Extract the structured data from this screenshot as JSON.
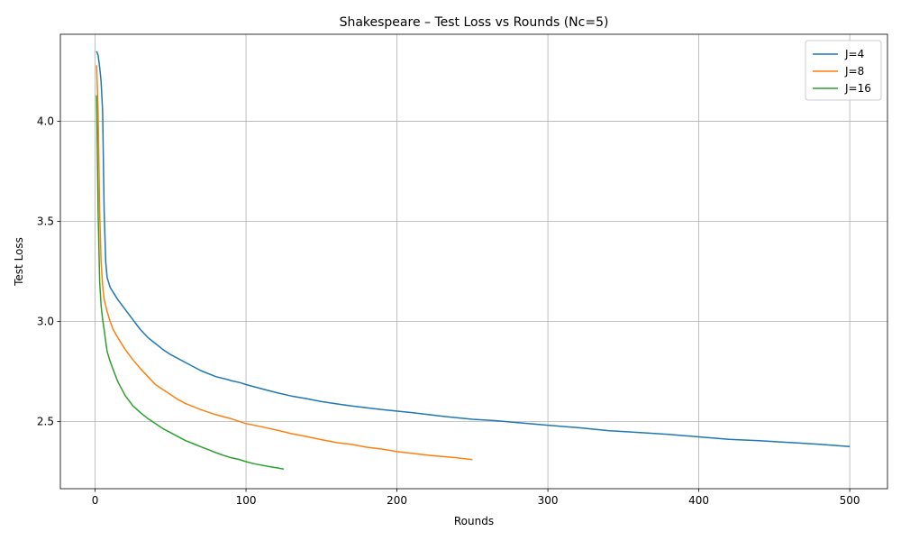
{
  "chart_data": {
    "type": "line",
    "title": "Shakespeare – Test Loss vs Rounds (Nc=5)",
    "xlabel": "Rounds",
    "ylabel": "Test Loss",
    "xlim": [
      -23,
      525
    ],
    "ylim": [
      2.165,
      4.435
    ],
    "xticks": [
      0,
      100,
      200,
      300,
      400,
      500
    ],
    "xtick_labels": [
      "0",
      "100",
      "200",
      "300",
      "400",
      "500"
    ],
    "yticks": [
      2.5,
      3.0,
      3.5,
      4.0
    ],
    "ytick_labels": [
      "2.5",
      "3.0",
      "3.5",
      "4.0"
    ],
    "grid": true,
    "legend": "top-right",
    "series": [
      {
        "name": "J=4",
        "color": "#1f77b4",
        "x": [
          1,
          2,
          3,
          4,
          5,
          6,
          7,
          8,
          10,
          15,
          20,
          25,
          30,
          35,
          40,
          45,
          50,
          60,
          70,
          80,
          88,
          90,
          96,
          100,
          110,
          120,
          130,
          140,
          150,
          170,
          190,
          210,
          230,
          250,
          265,
          280,
          300,
          320,
          340,
          360,
          380,
          400,
          420,
          440,
          460,
          480,
          500
        ],
        "y": [
          4.35,
          4.33,
          4.27,
          4.2,
          4.05,
          3.55,
          3.3,
          3.22,
          3.17,
          3.11,
          3.06,
          3.01,
          2.96,
          2.92,
          2.89,
          2.86,
          2.835,
          2.795,
          2.755,
          2.725,
          2.71,
          2.705,
          2.695,
          2.685,
          2.665,
          2.645,
          2.628,
          2.615,
          2.6,
          2.578,
          2.56,
          2.545,
          2.527,
          2.512,
          2.505,
          2.495,
          2.482,
          2.47,
          2.455,
          2.446,
          2.436,
          2.424,
          2.412,
          2.405,
          2.396,
          2.387,
          2.376
        ]
      },
      {
        "name": "J=8",
        "color": "#ff7f0e",
        "x": [
          1,
          2,
          3,
          4,
          5,
          6,
          7,
          8,
          10,
          12,
          15,
          20,
          25,
          30,
          35,
          40,
          45,
          50,
          55,
          60,
          70,
          80,
          90,
          100,
          110,
          120,
          130,
          140,
          150,
          160,
          170,
          180,
          190,
          200,
          210,
          220,
          230,
          240,
          250
        ],
        "y": [
          4.28,
          4.05,
          3.55,
          3.3,
          3.18,
          3.11,
          3.08,
          3.05,
          3.0,
          2.96,
          2.92,
          2.86,
          2.81,
          2.765,
          2.725,
          2.685,
          2.66,
          2.635,
          2.61,
          2.59,
          2.56,
          2.535,
          2.515,
          2.49,
          2.475,
          2.458,
          2.44,
          2.426,
          2.41,
          2.395,
          2.386,
          2.372,
          2.363,
          2.35,
          2.342,
          2.333,
          2.326,
          2.319,
          2.31
        ]
      },
      {
        "name": "J=16",
        "color": "#2ca02c",
        "x": [
          1,
          2,
          3,
          4,
          5,
          6,
          7,
          8,
          10,
          12,
          15,
          20,
          25,
          30,
          35,
          40,
          45,
          50,
          55,
          60,
          65,
          70,
          75,
          80,
          85,
          90,
          95,
          100,
          105,
          110,
          115,
          120,
          125
        ],
        "y": [
          4.13,
          3.55,
          3.2,
          3.08,
          3.01,
          2.96,
          2.9,
          2.85,
          2.8,
          2.76,
          2.7,
          2.63,
          2.58,
          2.545,
          2.515,
          2.49,
          2.465,
          2.445,
          2.425,
          2.405,
          2.39,
          2.375,
          2.36,
          2.345,
          2.332,
          2.32,
          2.312,
          2.3,
          2.29,
          2.283,
          2.276,
          2.27,
          2.263
        ]
      }
    ]
  }
}
